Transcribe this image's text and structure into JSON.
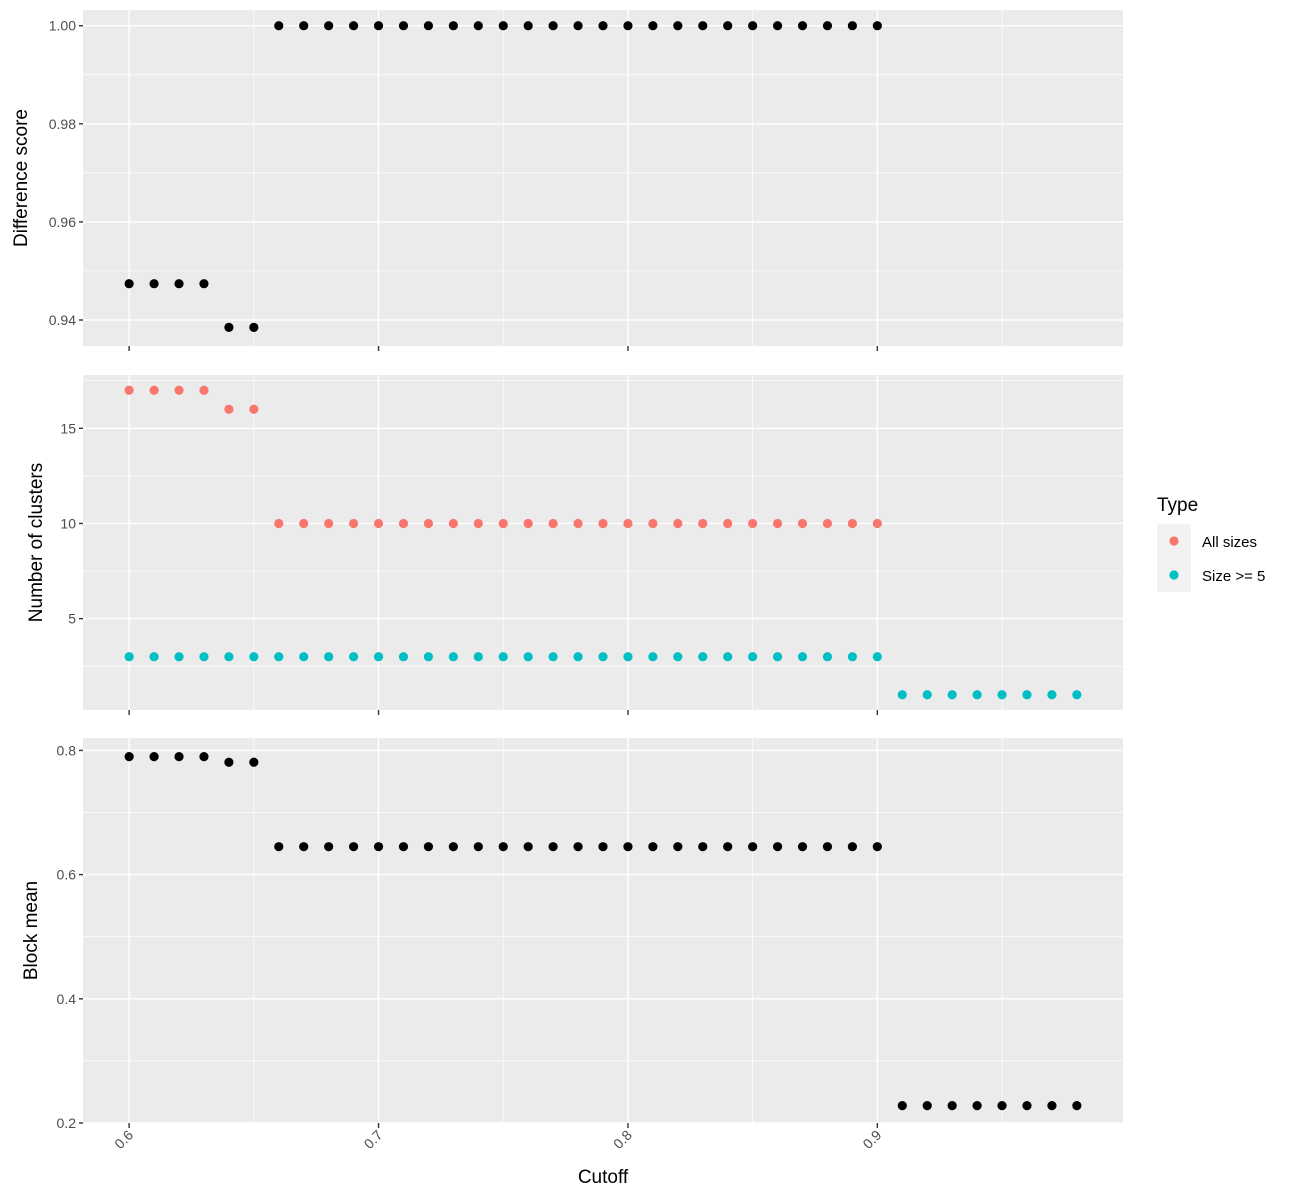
{
  "chart_data": {
    "type": "scatter",
    "xlabel": "Cutoff",
    "x_ticks": [
      "0.6",
      "0.7",
      "0.8",
      "0.9"
    ],
    "xlim": [
      0.5815,
      0.9985
    ],
    "legend": {
      "title": "Type",
      "position": "right",
      "entries": [
        {
          "label": "All sizes",
          "color": "#f8766d"
        },
        {
          "label": "Size >= 5",
          "color": "#00bfc4"
        }
      ]
    },
    "grid": true,
    "panels": [
      {
        "ylabel": "Difference score",
        "ylim": [
          0.9347,
          1.0032
        ],
        "y_ticks": [
          "0.94",
          "0.96",
          "0.98",
          "1.00"
        ],
        "y_tick_values": [
          0.94,
          0.96,
          0.98,
          1.0
        ],
        "y_minor": [
          0.95,
          0.97,
          0.99
        ],
        "series": [
          {
            "color": "#000000",
            "x": [
              0.6,
              0.61,
              0.62,
              0.63,
              0.64,
              0.65,
              0.66,
              0.67,
              0.68,
              0.69,
              0.7,
              0.71,
              0.72,
              0.73,
              0.74,
              0.75,
              0.76,
              0.77,
              0.78,
              0.79,
              0.8,
              0.81,
              0.82,
              0.83,
              0.84,
              0.85,
              0.86,
              0.87,
              0.88,
              0.89,
              0.9
            ],
            "y": [
              0.9474,
              0.9474,
              0.9474,
              0.9474,
              0.9385,
              0.9385,
              1.0,
              1.0,
              1.0,
              1.0,
              1.0,
              1.0,
              1.0,
              1.0,
              1.0,
              1.0,
              1.0,
              1.0,
              1.0,
              1.0,
              1.0,
              1.0,
              1.0,
              1.0,
              1.0,
              1.0,
              1.0,
              1.0,
              1.0,
              1.0,
              1.0
            ]
          }
        ]
      },
      {
        "ylabel": "Number of clusters",
        "ylim": [
          0.2,
          17.8
        ],
        "y_ticks": [
          "5",
          "10",
          "15"
        ],
        "y_tick_values": [
          5,
          10,
          15
        ],
        "y_minor": [
          2.5,
          7.5,
          12.5,
          17.5
        ],
        "series": [
          {
            "name": "All sizes",
            "color": "#f8766d",
            "x": [
              0.6,
              0.61,
              0.62,
              0.63,
              0.64,
              0.65,
              0.66,
              0.67,
              0.68,
              0.69,
              0.7,
              0.71,
              0.72,
              0.73,
              0.74,
              0.75,
              0.76,
              0.77,
              0.78,
              0.79,
              0.8,
              0.81,
              0.82,
              0.83,
              0.84,
              0.85,
              0.86,
              0.87,
              0.88,
              0.89,
              0.9
            ],
            "y": [
              17,
              17,
              17,
              17,
              16,
              16,
              10,
              10,
              10,
              10,
              10,
              10,
              10,
              10,
              10,
              10,
              10,
              10,
              10,
              10,
              10,
              10,
              10,
              10,
              10,
              10,
              10,
              10,
              10,
              10,
              10
            ]
          },
          {
            "name": "Size >= 5",
            "color": "#00bfc4",
            "x": [
              0.6,
              0.61,
              0.62,
              0.63,
              0.64,
              0.65,
              0.66,
              0.67,
              0.68,
              0.69,
              0.7,
              0.71,
              0.72,
              0.73,
              0.74,
              0.75,
              0.76,
              0.77,
              0.78,
              0.79,
              0.8,
              0.81,
              0.82,
              0.83,
              0.84,
              0.85,
              0.86,
              0.87,
              0.88,
              0.89,
              0.9,
              0.91,
              0.92,
              0.93,
              0.94,
              0.95,
              0.96,
              0.97,
              0.98
            ],
            "y": [
              3,
              3,
              3,
              3,
              3,
              3,
              3,
              3,
              3,
              3,
              3,
              3,
              3,
              3,
              3,
              3,
              3,
              3,
              3,
              3,
              3,
              3,
              3,
              3,
              3,
              3,
              3,
              3,
              3,
              3,
              3,
              1,
              1,
              1,
              1,
              1,
              1,
              1,
              1
            ]
          }
        ]
      },
      {
        "ylabel": "Block mean",
        "ylim": [
          0.2,
          0.82
        ],
        "y_ticks": [
          "0.2",
          "0.4",
          "0.6",
          "0.8"
        ],
        "y_tick_values": [
          0.2,
          0.4,
          0.6,
          0.8
        ],
        "y_minor": [
          0.3,
          0.5,
          0.7
        ],
        "series": [
          {
            "color": "#000000",
            "x": [
              0.6,
              0.61,
              0.62,
              0.63,
              0.64,
              0.65,
              0.66,
              0.67,
              0.68,
              0.69,
              0.7,
              0.71,
              0.72,
              0.73,
              0.74,
              0.75,
              0.76,
              0.77,
              0.78,
              0.79,
              0.8,
              0.81,
              0.82,
              0.83,
              0.84,
              0.85,
              0.86,
              0.87,
              0.88,
              0.89,
              0.9,
              0.91,
              0.92,
              0.93,
              0.94,
              0.95,
              0.96,
              0.97,
              0.98
            ],
            "y": [
              0.79,
              0.79,
              0.79,
              0.79,
              0.781,
              0.781,
              0.645,
              0.645,
              0.645,
              0.645,
              0.645,
              0.645,
              0.645,
              0.645,
              0.645,
              0.645,
              0.645,
              0.645,
              0.645,
              0.645,
              0.645,
              0.645,
              0.645,
              0.645,
              0.645,
              0.645,
              0.645,
              0.645,
              0.645,
              0.645,
              0.645,
              0.228,
              0.228,
              0.228,
              0.228,
              0.228,
              0.228,
              0.228,
              0.228
            ]
          }
        ]
      }
    ]
  }
}
